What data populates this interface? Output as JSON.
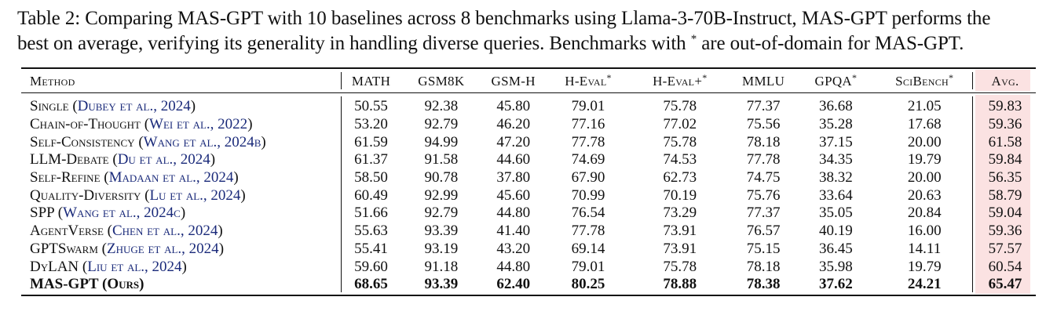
{
  "caption": {
    "line1": "Table 2: Comparing MAS-GPT with 10 baselines across 8 benchmarks using Llama-3-70B-Instruct, MAS-GPT performs the",
    "line2a": "best on average, verifying its generality in handling diverse queries. Benchmarks with ",
    "line2_star": "*",
    "line2b": " are out-of-domain for MAS-GPT."
  },
  "table": {
    "headers": {
      "method": "Method",
      "math": "MATH",
      "gsm8k": "GSM8K",
      "gsmh": "GSM-H",
      "heval": "H-Eval",
      "heval_star": "*",
      "hevalp": "H-Eval+",
      "hevalp_star": "*",
      "mmlu": "MMLU",
      "gpqa": "GPQA",
      "gpqa_star": "*",
      "scibench": "SciBench",
      "scibench_star": "*",
      "avg": "Avg."
    },
    "rows": [
      {
        "name": "Single",
        "cite": "Dubey et al., 2024",
        "vals": [
          "50.55",
          "92.38",
          "45.80",
          "79.01",
          "75.78",
          "77.37",
          "36.68",
          "21.05",
          "59.83"
        ]
      },
      {
        "name": "Chain-of-Thought",
        "cite": "Wei et al., 2022",
        "vals": [
          "53.20",
          "92.79",
          "46.20",
          "77.16",
          "77.02",
          "75.56",
          "35.28",
          "17.68",
          "59.36"
        ]
      },
      {
        "name": "Self-Consistency",
        "cite": "Wang et al., 2024b",
        "vals": [
          "61.59",
          "94.99",
          "47.20",
          "77.78",
          "75.78",
          "78.18",
          "37.15",
          "20.00",
          "61.58"
        ]
      },
      {
        "name": "LLM-Debate",
        "cite": "Du et al., 2024",
        "vals": [
          "61.37",
          "91.58",
          "44.60",
          "74.69",
          "74.53",
          "77.78",
          "34.35",
          "19.79",
          "59.84"
        ]
      },
      {
        "name": "Self-Refine",
        "cite": "Madaan et al., 2024",
        "vals": [
          "58.50",
          "90.78",
          "37.80",
          "67.90",
          "62.73",
          "74.75",
          "38.32",
          "20.00",
          "56.35"
        ]
      },
      {
        "name": "Quality-Diversity",
        "cite": "Lu et al., 2024",
        "vals": [
          "60.49",
          "92.99",
          "45.60",
          "70.99",
          "70.19",
          "75.76",
          "33.64",
          "20.63",
          "58.79"
        ]
      },
      {
        "name": "SPP",
        "cite": "Wang et al., 2024c",
        "vals": [
          "51.66",
          "92.79",
          "44.80",
          "76.54",
          "73.29",
          "77.37",
          "35.05",
          "20.84",
          "59.04"
        ]
      },
      {
        "name": "AgentVerse",
        "cite": "Chen et al., 2024",
        "vals": [
          "55.63",
          "93.39",
          "41.40",
          "77.78",
          "73.91",
          "76.57",
          "40.19",
          "16.00",
          "59.36"
        ]
      },
      {
        "name": "GPTSwarm",
        "cite": "Zhuge et al., 2024",
        "vals": [
          "55.41",
          "93.19",
          "43.20",
          "69.14",
          "73.91",
          "75.15",
          "36.45",
          "14.11",
          "57.57"
        ]
      },
      {
        "name": "DyLAN",
        "cite": "Liu et al., 2024",
        "vals": [
          "59.60",
          "91.18",
          "44.80",
          "79.01",
          "75.78",
          "78.18",
          "35.98",
          "19.79",
          "60.54"
        ]
      },
      {
        "name": "MAS-GPT",
        "cite": "Ours",
        "vals": [
          "68.65",
          "93.39",
          "62.40",
          "80.25",
          "78.88",
          "78.38",
          "37.62",
          "24.21",
          "65.47"
        ]
      }
    ]
  }
}
